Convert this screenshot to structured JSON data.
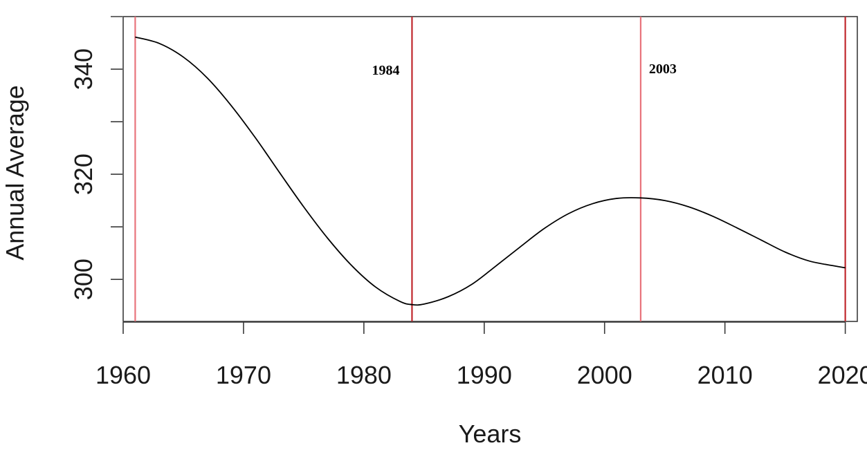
{
  "chart_data": {
    "type": "line",
    "title": "",
    "xlabel": "Years",
    "ylabel": "Annual Average",
    "xlim": [
      1960,
      2021
    ],
    "ylim": [
      292,
      350
    ],
    "x_ticks": [
      1960,
      1970,
      1980,
      1990,
      2000,
      2010,
      2020
    ],
    "y_ticks": [
      300,
      320,
      340
    ],
    "grid": false,
    "series": [
      {
        "x": [
          1961,
          1963,
          1965,
          1967,
          1969,
          1971,
          1973,
          1975,
          1977,
          1979,
          1981,
          1983,
          1984,
          1985,
          1987,
          1989,
          1991,
          1993,
          1995,
          1997,
          1999,
          2001,
          2003,
          2005,
          2007,
          2009,
          2011,
          2013,
          2015,
          2017,
          2019,
          2020
        ],
        "values": [
          346.1,
          344.9,
          342.3,
          338.3,
          333.0,
          326.9,
          320.3,
          313.8,
          307.8,
          302.6,
          298.5,
          295.8,
          295.2,
          295.3,
          296.7,
          299.1,
          302.6,
          306.2,
          309.7,
          312.5,
          314.4,
          315.4,
          315.5,
          315.0,
          313.8,
          312.0,
          309.8,
          307.5,
          305.2,
          303.5,
          302.6,
          302.2
        ]
      }
    ],
    "vlines": [
      {
        "x": 1961,
        "color": "#e8737b"
      },
      {
        "x": 1984,
        "color": "#c0272d"
      },
      {
        "x": 2003,
        "color": "#e8737b"
      },
      {
        "x": 2020,
        "color": "#c0272d"
      }
    ],
    "annotations": [
      {
        "text": "1984",
        "x": 1984
      },
      {
        "text": "2003",
        "x": 2003
      }
    ],
    "line_color": "#000000"
  }
}
